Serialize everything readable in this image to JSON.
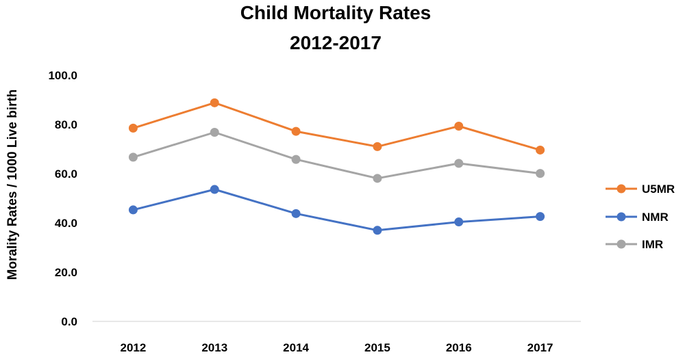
{
  "chart_data": {
    "type": "line",
    "title": [
      "Child Mortality Rates",
      "2012-2017"
    ],
    "xlabel": "",
    "ylabel": "Morality Rates / 1000 Live birth",
    "categories": [
      "2012",
      "2013",
      "2014",
      "2015",
      "2016",
      "2017"
    ],
    "ylim": [
      0,
      100
    ],
    "yticks": [
      "0.0",
      "20.0",
      "40.0",
      "60.0",
      "80.0",
      "100.0"
    ],
    "grid": false,
    "legend_position": "right",
    "series": [
      {
        "name": "U5MR",
        "color": "#ed7d31",
        "values": [
          78.5,
          88.8,
          77.2,
          71.0,
          79.3,
          69.6
        ]
      },
      {
        "name": "NMR",
        "color": "#4472c4",
        "values": [
          45.3,
          53.6,
          43.8,
          37.0,
          40.4,
          42.6
        ]
      },
      {
        "name": "IMR",
        "color": "#a5a5a5",
        "values": [
          66.7,
          76.8,
          65.8,
          58.1,
          64.2,
          60.1
        ]
      }
    ]
  }
}
